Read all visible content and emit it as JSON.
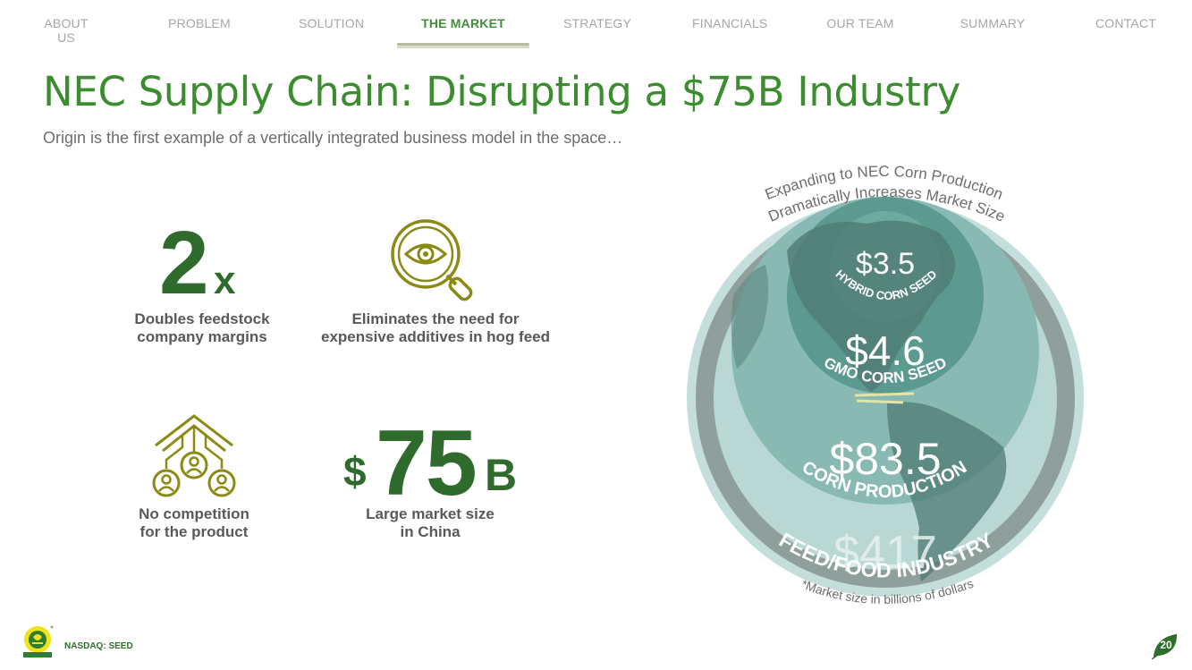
{
  "nav": {
    "items": [
      {
        "label": "ABOUT US"
      },
      {
        "label": "PROBLEM"
      },
      {
        "label": "SOLUTION"
      },
      {
        "label": "THE MARKET"
      },
      {
        "label": "STRATEGY"
      },
      {
        "label": "FINANCIALS"
      },
      {
        "label": "OUR TEAM"
      },
      {
        "label": "SUMMARY"
      },
      {
        "label": "CONTACT"
      }
    ],
    "active": "THE MARKET"
  },
  "title": "NEC Supply Chain: Disrupting a $75B Industry",
  "subtitle": "Origin is the first example of a vertically integrated business model in the space…",
  "stats": {
    "margins": {
      "big": "2",
      "suffix": "x",
      "label_line1": "Doubles feedstock",
      "label_line2": "company margins"
    },
    "additives": {
      "icon": "magnifier-eye-icon",
      "label_line1": "Eliminates the need for",
      "label_line2": "expensive additives in hog feed"
    },
    "competition": {
      "icon": "network-people-icon",
      "label_line1": "No competition",
      "label_line2": "for the product"
    },
    "market": {
      "prefix": "$",
      "big": "75",
      "suffix": "B",
      "label_line1": "Large market size",
      "label_line2": "in China"
    }
  },
  "globe": {
    "arc_line1": "Expanding to NEC Corn Production",
    "arc_line2": "Dramatically Increases Market Size",
    "footnote": "*Market size in billions of dollars",
    "rings": [
      {
        "value": "$3.5",
        "label": "HYBRID CORN SEED"
      },
      {
        "value": "$4.6",
        "label": "GMO CORN SEED"
      },
      {
        "value": "$83.5",
        "label": "CORN PRODUCTION"
      },
      {
        "value": "$417",
        "label": "FEED/FOOD INDUSTRY"
      }
    ]
  },
  "footer": {
    "ticker": "NASDAQ: SEED",
    "page": "20"
  },
  "colors": {
    "brand_green": "#3b8d2f",
    "dark_green": "#2f6b2d",
    "olive": "#8a8a14",
    "teal": "#7fb4ab"
  }
}
